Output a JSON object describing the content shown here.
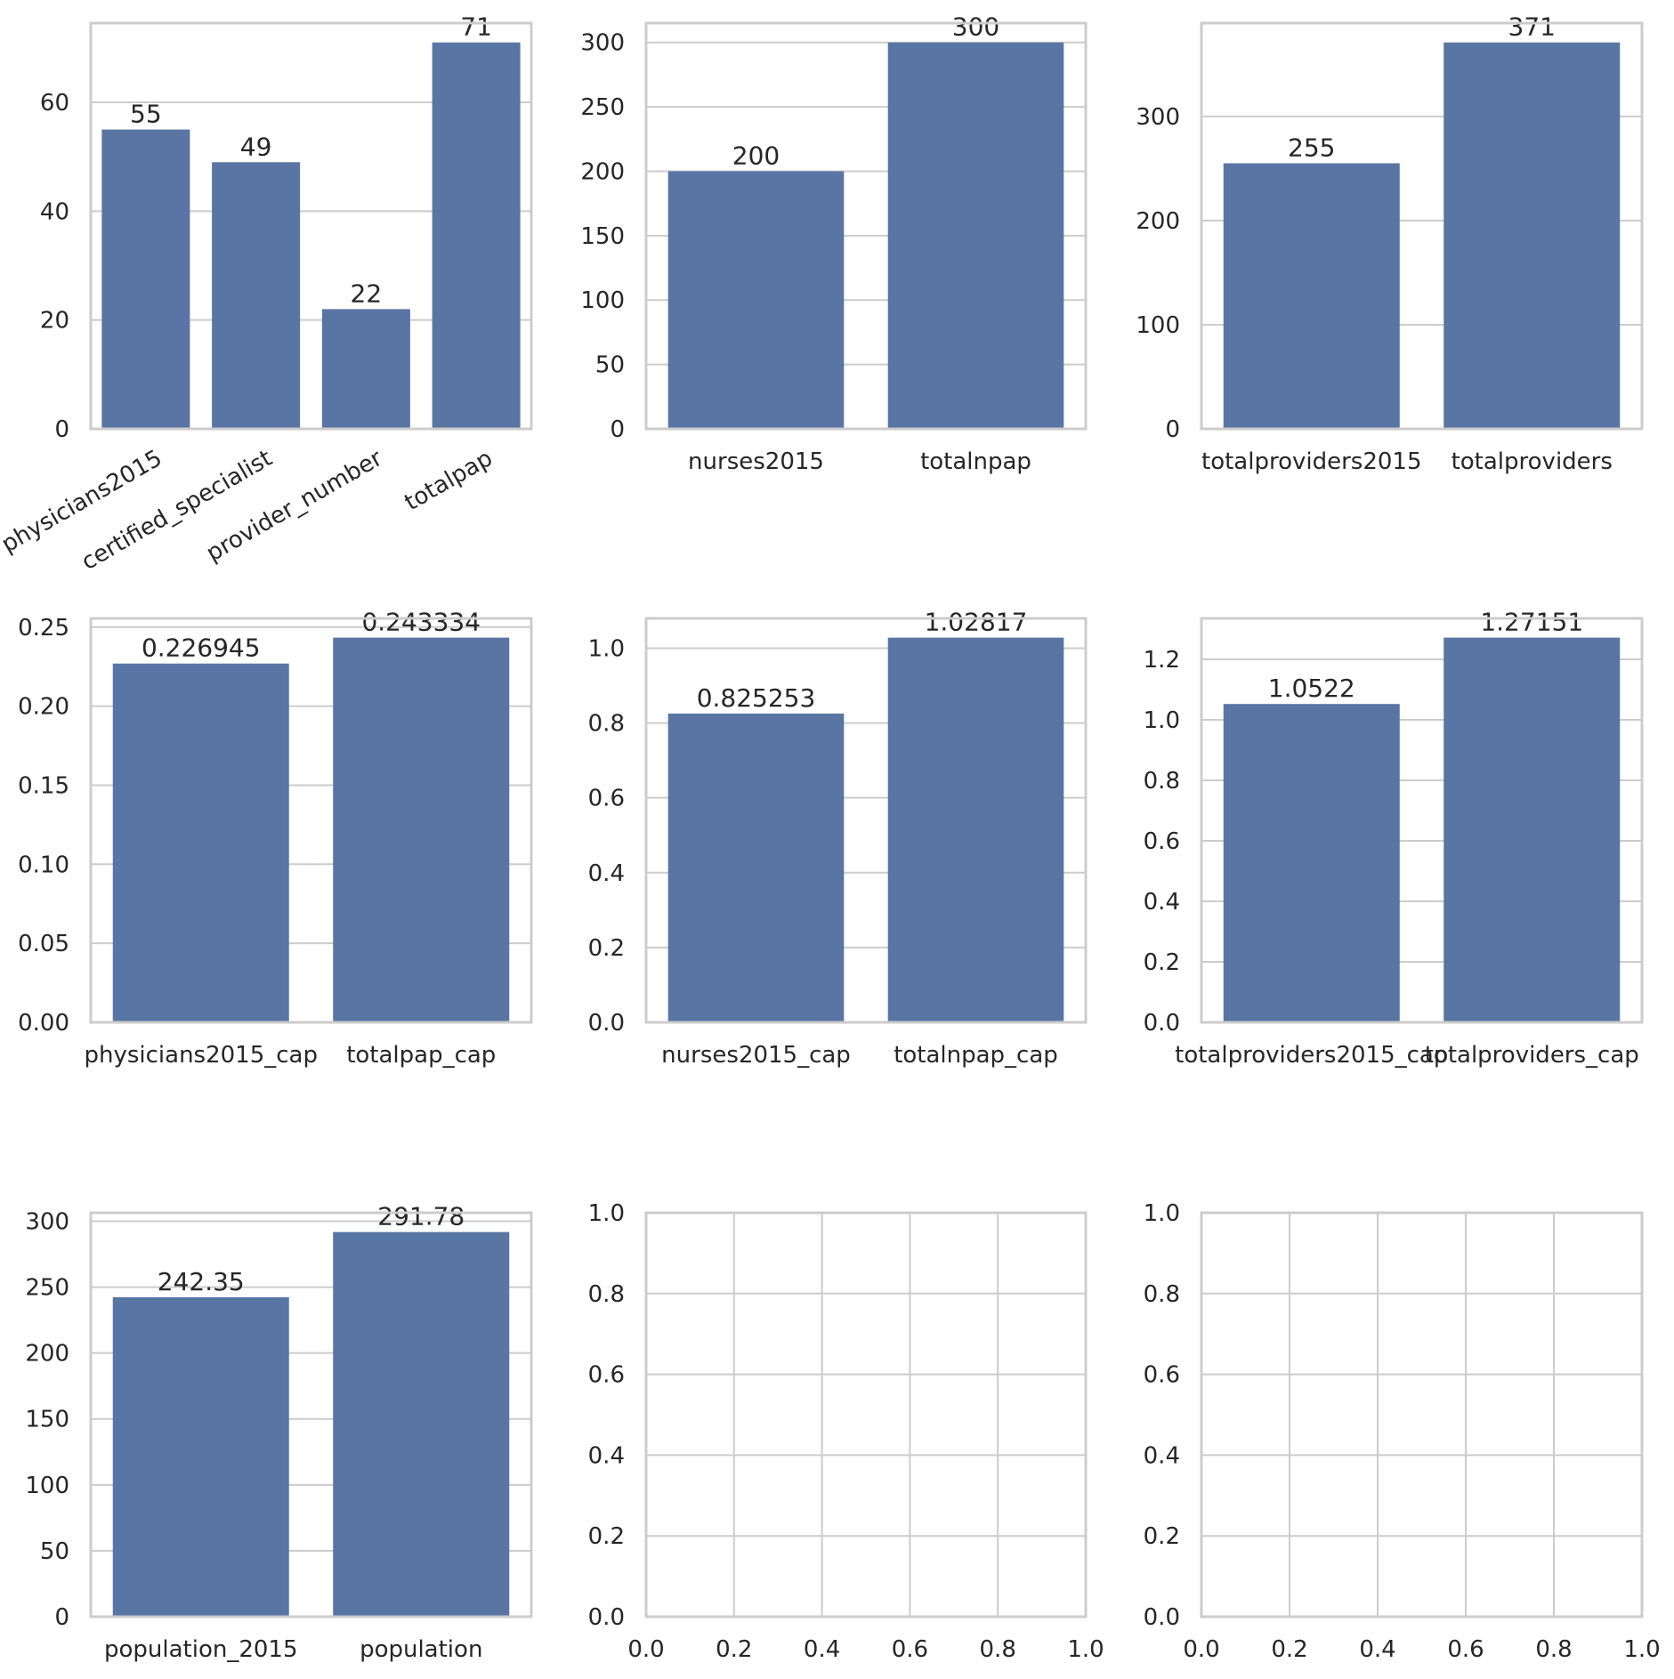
{
  "colors": {
    "bar": "#5975a4",
    "grid": "#cccccc",
    "frame": "#cccccc",
    "text": "#262626",
    "background": "#ffffff"
  },
  "chart_data": [
    {
      "type": "bar",
      "categories": [
        "physicians2015",
        "certified_specialist",
        "provider_number",
        "totalpap"
      ],
      "values": [
        55,
        49,
        22,
        71
      ],
      "data_labels": [
        "55",
        "49",
        "22",
        "71"
      ],
      "ylim": [
        0,
        74.55
      ],
      "yticks": [
        0,
        20,
        40,
        60
      ],
      "ytick_labels": [
        "0",
        "20",
        "40",
        "60"
      ],
      "xtick_rotation": 30,
      "grid": true
    },
    {
      "type": "bar",
      "categories": [
        "nurses2015",
        "totalnpap"
      ],
      "values": [
        200,
        300
      ],
      "data_labels": [
        "200",
        "300"
      ],
      "ylim": [
        0,
        315
      ],
      "yticks": [
        0,
        50,
        100,
        150,
        200,
        250,
        300
      ],
      "ytick_labels": [
        "0",
        "50",
        "100",
        "150",
        "200",
        "250",
        "300"
      ],
      "grid": true
    },
    {
      "type": "bar",
      "categories": [
        "totalproviders2015",
        "totalproviders"
      ],
      "values": [
        255,
        371
      ],
      "data_labels": [
        "255",
        "371"
      ],
      "ylim": [
        0,
        389.55
      ],
      "yticks": [
        0,
        100,
        200,
        300
      ],
      "ytick_labels": [
        "0",
        "100",
        "200",
        "300"
      ],
      "grid": true
    },
    {
      "type": "bar",
      "categories": [
        "physicians2015_cap",
        "totalpap_cap"
      ],
      "values": [
        0.226945,
        0.243334
      ],
      "data_labels": [
        "0.226945",
        "0.243334"
      ],
      "ylim": [
        0,
        0.2555
      ],
      "yticks": [
        0,
        0.05,
        0.1,
        0.15,
        0.2,
        0.25
      ],
      "ytick_labels": [
        "0.00",
        "0.05",
        "0.10",
        "0.15",
        "0.20",
        "0.25"
      ],
      "grid": true
    },
    {
      "type": "bar",
      "categories": [
        "nurses2015_cap",
        "totalnpap_cap"
      ],
      "values": [
        0.825253,
        1.02817
      ],
      "data_labels": [
        "0.825253",
        "1.02817"
      ],
      "ylim": [
        0,
        1.0796
      ],
      "yticks": [
        0,
        0.2,
        0.4,
        0.6,
        0.8,
        1.0
      ],
      "ytick_labels": [
        "0.0",
        "0.2",
        "0.4",
        "0.6",
        "0.8",
        "1.0"
      ],
      "grid": true
    },
    {
      "type": "bar",
      "categories": [
        "totalproviders2015_cap",
        "totalproviders_cap"
      ],
      "values": [
        1.0522,
        1.27151
      ],
      "data_labels": [
        "1.0522",
        "1.27151"
      ],
      "ylim": [
        0,
        1.3351
      ],
      "yticks": [
        0,
        0.2,
        0.4,
        0.6,
        0.8,
        1.0,
        1.2
      ],
      "ytick_labels": [
        "0.0",
        "0.2",
        "0.4",
        "0.6",
        "0.8",
        "1.0",
        "1.2"
      ],
      "grid": true
    },
    {
      "type": "bar",
      "categories": [
        "population_2015",
        "population"
      ],
      "values": [
        242.35,
        291.78
      ],
      "data_labels": [
        "242.35",
        "291.78"
      ],
      "ylim": [
        0,
        306.4
      ],
      "yticks": [
        0,
        50,
        100,
        150,
        200,
        250,
        300
      ],
      "ytick_labels": [
        "0",
        "50",
        "100",
        "150",
        "200",
        "250",
        "300"
      ],
      "grid": true
    },
    {
      "type": "empty",
      "xlim": [
        0,
        1
      ],
      "ylim": [
        0,
        1
      ],
      "xticks": [
        0,
        0.2,
        0.4,
        0.6,
        0.8,
        1.0
      ],
      "xtick_labels": [
        "0.0",
        "0.2",
        "0.4",
        "0.6",
        "0.8",
        "1.0"
      ],
      "yticks": [
        0,
        0.2,
        0.4,
        0.6,
        0.8,
        1.0
      ],
      "ytick_labels": [
        "0.0",
        "0.2",
        "0.4",
        "0.6",
        "0.8",
        "1.0"
      ],
      "grid": true
    },
    {
      "type": "empty",
      "xlim": [
        0,
        1
      ],
      "ylim": [
        0,
        1
      ],
      "xticks": [
        0,
        0.2,
        0.4,
        0.6,
        0.8,
        1.0
      ],
      "xtick_labels": [
        "0.0",
        "0.2",
        "0.4",
        "0.6",
        "0.8",
        "1.0"
      ],
      "yticks": [
        0,
        0.2,
        0.4,
        0.6,
        0.8,
        1.0
      ],
      "ytick_labels": [
        "0.0",
        "0.2",
        "0.4",
        "0.6",
        "0.8",
        "1.0"
      ],
      "grid": true
    }
  ]
}
